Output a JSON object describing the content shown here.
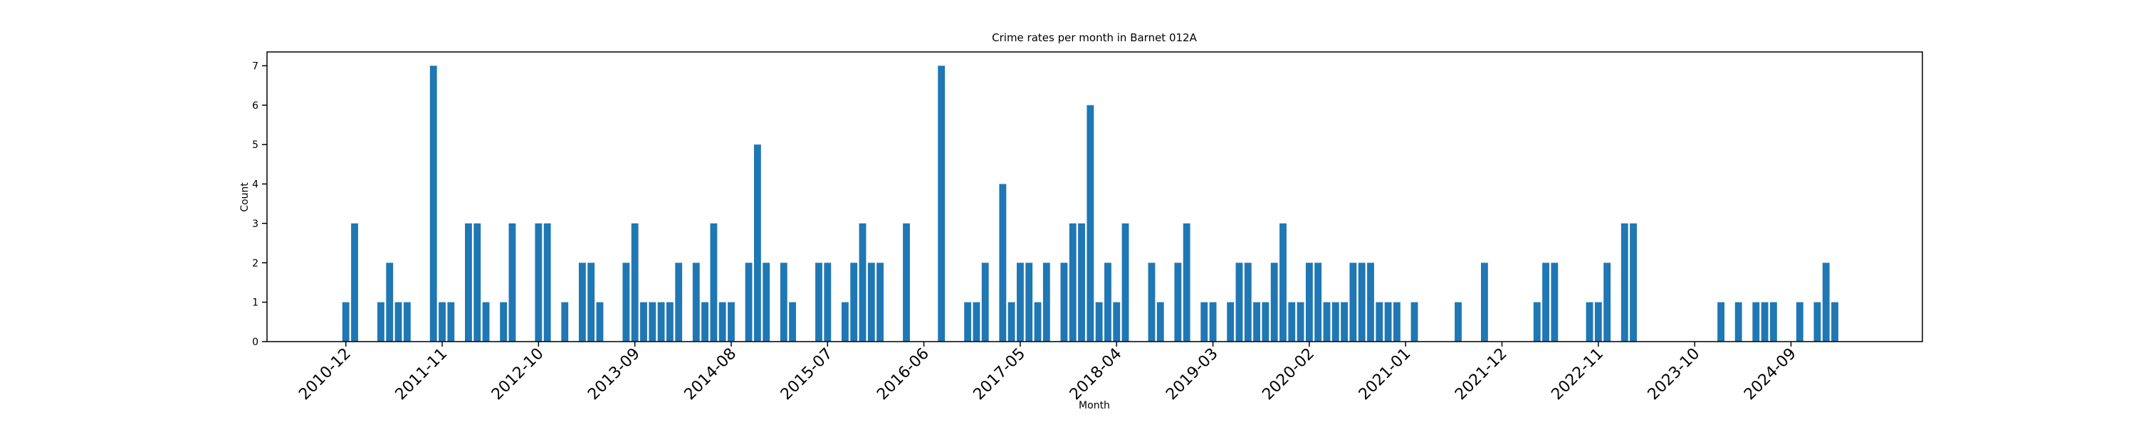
{
  "chart_data": {
    "type": "bar",
    "title": "Crime rates per month in Barnet 012A",
    "x_label": "Month",
    "y_label": "Count",
    "color": "#1f77b4",
    "x": [
      "2010-12",
      "2011-01",
      "2011-04",
      "2011-05",
      "2011-06",
      "2011-07",
      "2011-10",
      "2011-11",
      "2011-12",
      "2012-02",
      "2012-03",
      "2012-04",
      "2012-06",
      "2012-07",
      "2012-10",
      "2012-11",
      "2013-01",
      "2013-03",
      "2013-04",
      "2013-05",
      "2013-08",
      "2013-09",
      "2013-10",
      "2013-11",
      "2013-12",
      "2014-01",
      "2014-02",
      "2014-04",
      "2014-05",
      "2014-06",
      "2014-07",
      "2014-08",
      "2014-10",
      "2014-11",
      "2014-12",
      "2015-02",
      "2015-03",
      "2015-06",
      "2015-07",
      "2015-09",
      "2015-10",
      "2015-11",
      "2015-12",
      "2016-01",
      "2016-04",
      "2016-08",
      "2016-11",
      "2016-12",
      "2017-01",
      "2017-03",
      "2017-04",
      "2017-05",
      "2017-06",
      "2017-07",
      "2017-08",
      "2017-10",
      "2017-11",
      "2017-12",
      "2018-01",
      "2018-02",
      "2018-03",
      "2018-04",
      "2018-05",
      "2018-08",
      "2018-09",
      "2018-11",
      "2018-12",
      "2019-02",
      "2019-03",
      "2019-05",
      "2019-06",
      "2019-07",
      "2019-08",
      "2019-09",
      "2019-10",
      "2019-11",
      "2019-12",
      "2020-01",
      "2020-02",
      "2020-03",
      "2020-04",
      "2020-05",
      "2020-06",
      "2020-07",
      "2020-08",
      "2020-09",
      "2020-10",
      "2020-11",
      "2020-12",
      "2021-02",
      "2021-07",
      "2021-10",
      "2022-04",
      "2022-05",
      "2022-06",
      "2022-10",
      "2022-11",
      "2022-12",
      "2023-02",
      "2023-03",
      "2024-01",
      "2024-03",
      "2024-05",
      "2024-06",
      "2024-07",
      "2024-10",
      "2024-12",
      "2025-01",
      "2025-02"
    ],
    "values": [
      1,
      3,
      1,
      2,
      1,
      1,
      7,
      1,
      1,
      3,
      3,
      1,
      1,
      3,
      3,
      3,
      1,
      2,
      2,
      1,
      2,
      3,
      1,
      1,
      1,
      1,
      2,
      2,
      1,
      3,
      1,
      1,
      2,
      5,
      2,
      2,
      1,
      2,
      2,
      1,
      2,
      3,
      2,
      2,
      3,
      7,
      1,
      1,
      2,
      4,
      1,
      2,
      2,
      1,
      2,
      2,
      3,
      3,
      6,
      1,
      2,
      1,
      3,
      2,
      1,
      2,
      3,
      1,
      1,
      1,
      2,
      2,
      1,
      1,
      2,
      3,
      1,
      1,
      2,
      2,
      1,
      1,
      1,
      2,
      2,
      2,
      1,
      1,
      1,
      1,
      1,
      2,
      1,
      2,
      2,
      1,
      1,
      2,
      3,
      3,
      1,
      1,
      1,
      1,
      1,
      1,
      1,
      2,
      1
    ],
    "xlim": [
      "2010-03",
      "2025-12"
    ],
    "xticks": [
      "2010-12",
      "2011-11",
      "2012-10",
      "2013-09",
      "2014-08",
      "2015-07",
      "2016-06",
      "2017-05",
      "2018-04",
      "2019-03",
      "2020-02",
      "2021-01",
      "2021-12",
      "2022-11",
      "2023-10",
      "2024-09"
    ],
    "ylim": [
      0,
      7.35
    ],
    "yticks": [
      0,
      1,
      2,
      3,
      4,
      5,
      6,
      7
    ]
  }
}
